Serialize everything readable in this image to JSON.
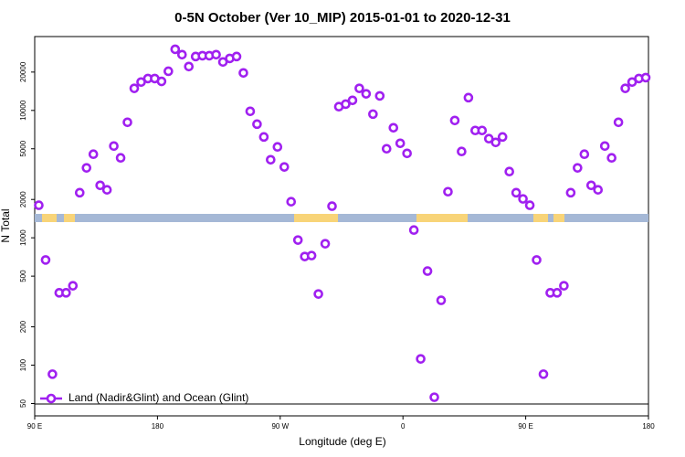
{
  "chart_data": {
    "type": "scatter",
    "title": "0-5N October (Ver 10_MIP)   2015-01-01 to 2020-12-31",
    "xlabel": "Longitude (deg E)",
    "ylabel": "N Total",
    "xlim": [
      90,
      540
    ],
    "xticks": [
      {
        "value": 90,
        "label": "90 E"
      },
      180,
      {
        "value": 270,
        "label": "90 W"
      },
      {
        "value": 360,
        "label": "0"
      },
      {
        "value": 450,
        "label": "90 E"
      },
      180
    ],
    "ylim": [
      40,
      38000
    ],
    "ylog": true,
    "yticks": [
      50,
      100,
      200,
      500,
      1000,
      2000,
      5000,
      10000,
      20000
    ],
    "series": [
      {
        "name": "Land (Nadir&Glint) and Ocean (Glint)",
        "color": "#a020f0",
        "x": [
          93,
          98,
          103,
          108,
          113,
          118,
          123,
          128,
          133,
          138,
          143,
          148,
          153,
          158,
          163,
          168,
          173,
          178,
          183,
          188,
          193,
          198,
          203,
          208,
          213,
          218,
          223,
          228,
          233,
          238,
          243,
          248,
          253,
          258,
          263,
          268,
          273,
          278,
          283,
          288,
          293,
          298,
          303,
          308,
          313,
          318,
          323,
          328,
          333,
          338,
          343,
          348,
          353,
          358,
          363,
          368,
          373,
          378,
          383,
          388,
          393,
          398,
          403,
          408,
          413,
          418,
          423,
          428,
          433,
          438,
          443,
          448,
          453,
          458,
          463,
          468,
          473,
          478,
          483,
          488,
          493,
          498,
          503,
          508,
          513,
          518,
          523,
          528,
          533,
          538
        ],
        "values": [
          1800,
          670,
          85,
          370,
          370,
          420,
          2260,
          3540,
          4530,
          2580,
          2380,
          5250,
          4240,
          8070,
          14900,
          16700,
          17800,
          17800,
          16900,
          20300,
          30200,
          27400,
          22100,
          26500,
          26900,
          26900,
          27400,
          24000,
          25600,
          26500,
          19700,
          9840,
          7800,
          6190,
          4100,
          5170,
          3600,
          1920,
          960,
          713,
          725,
          362,
          898,
          1770,
          10700,
          11200,
          12000,
          14900,
          13500,
          9350,
          13000,
          5000,
          7310,
          5520,
          4600,
          1150,
          112,
          548,
          56,
          323,
          2300,
          8340,
          4760,
          12600,
          6960,
          6960,
          6000,
          5610,
          6190,
          3310,
          2260,
          2020,
          1800,
          670,
          85,
          370,
          370,
          420,
          2260,
          3540,
          4530,
          2580,
          2380,
          5250,
          4240,
          8070,
          14900,
          16700,
          17800,
          18100
        ]
      }
    ]
  }
}
